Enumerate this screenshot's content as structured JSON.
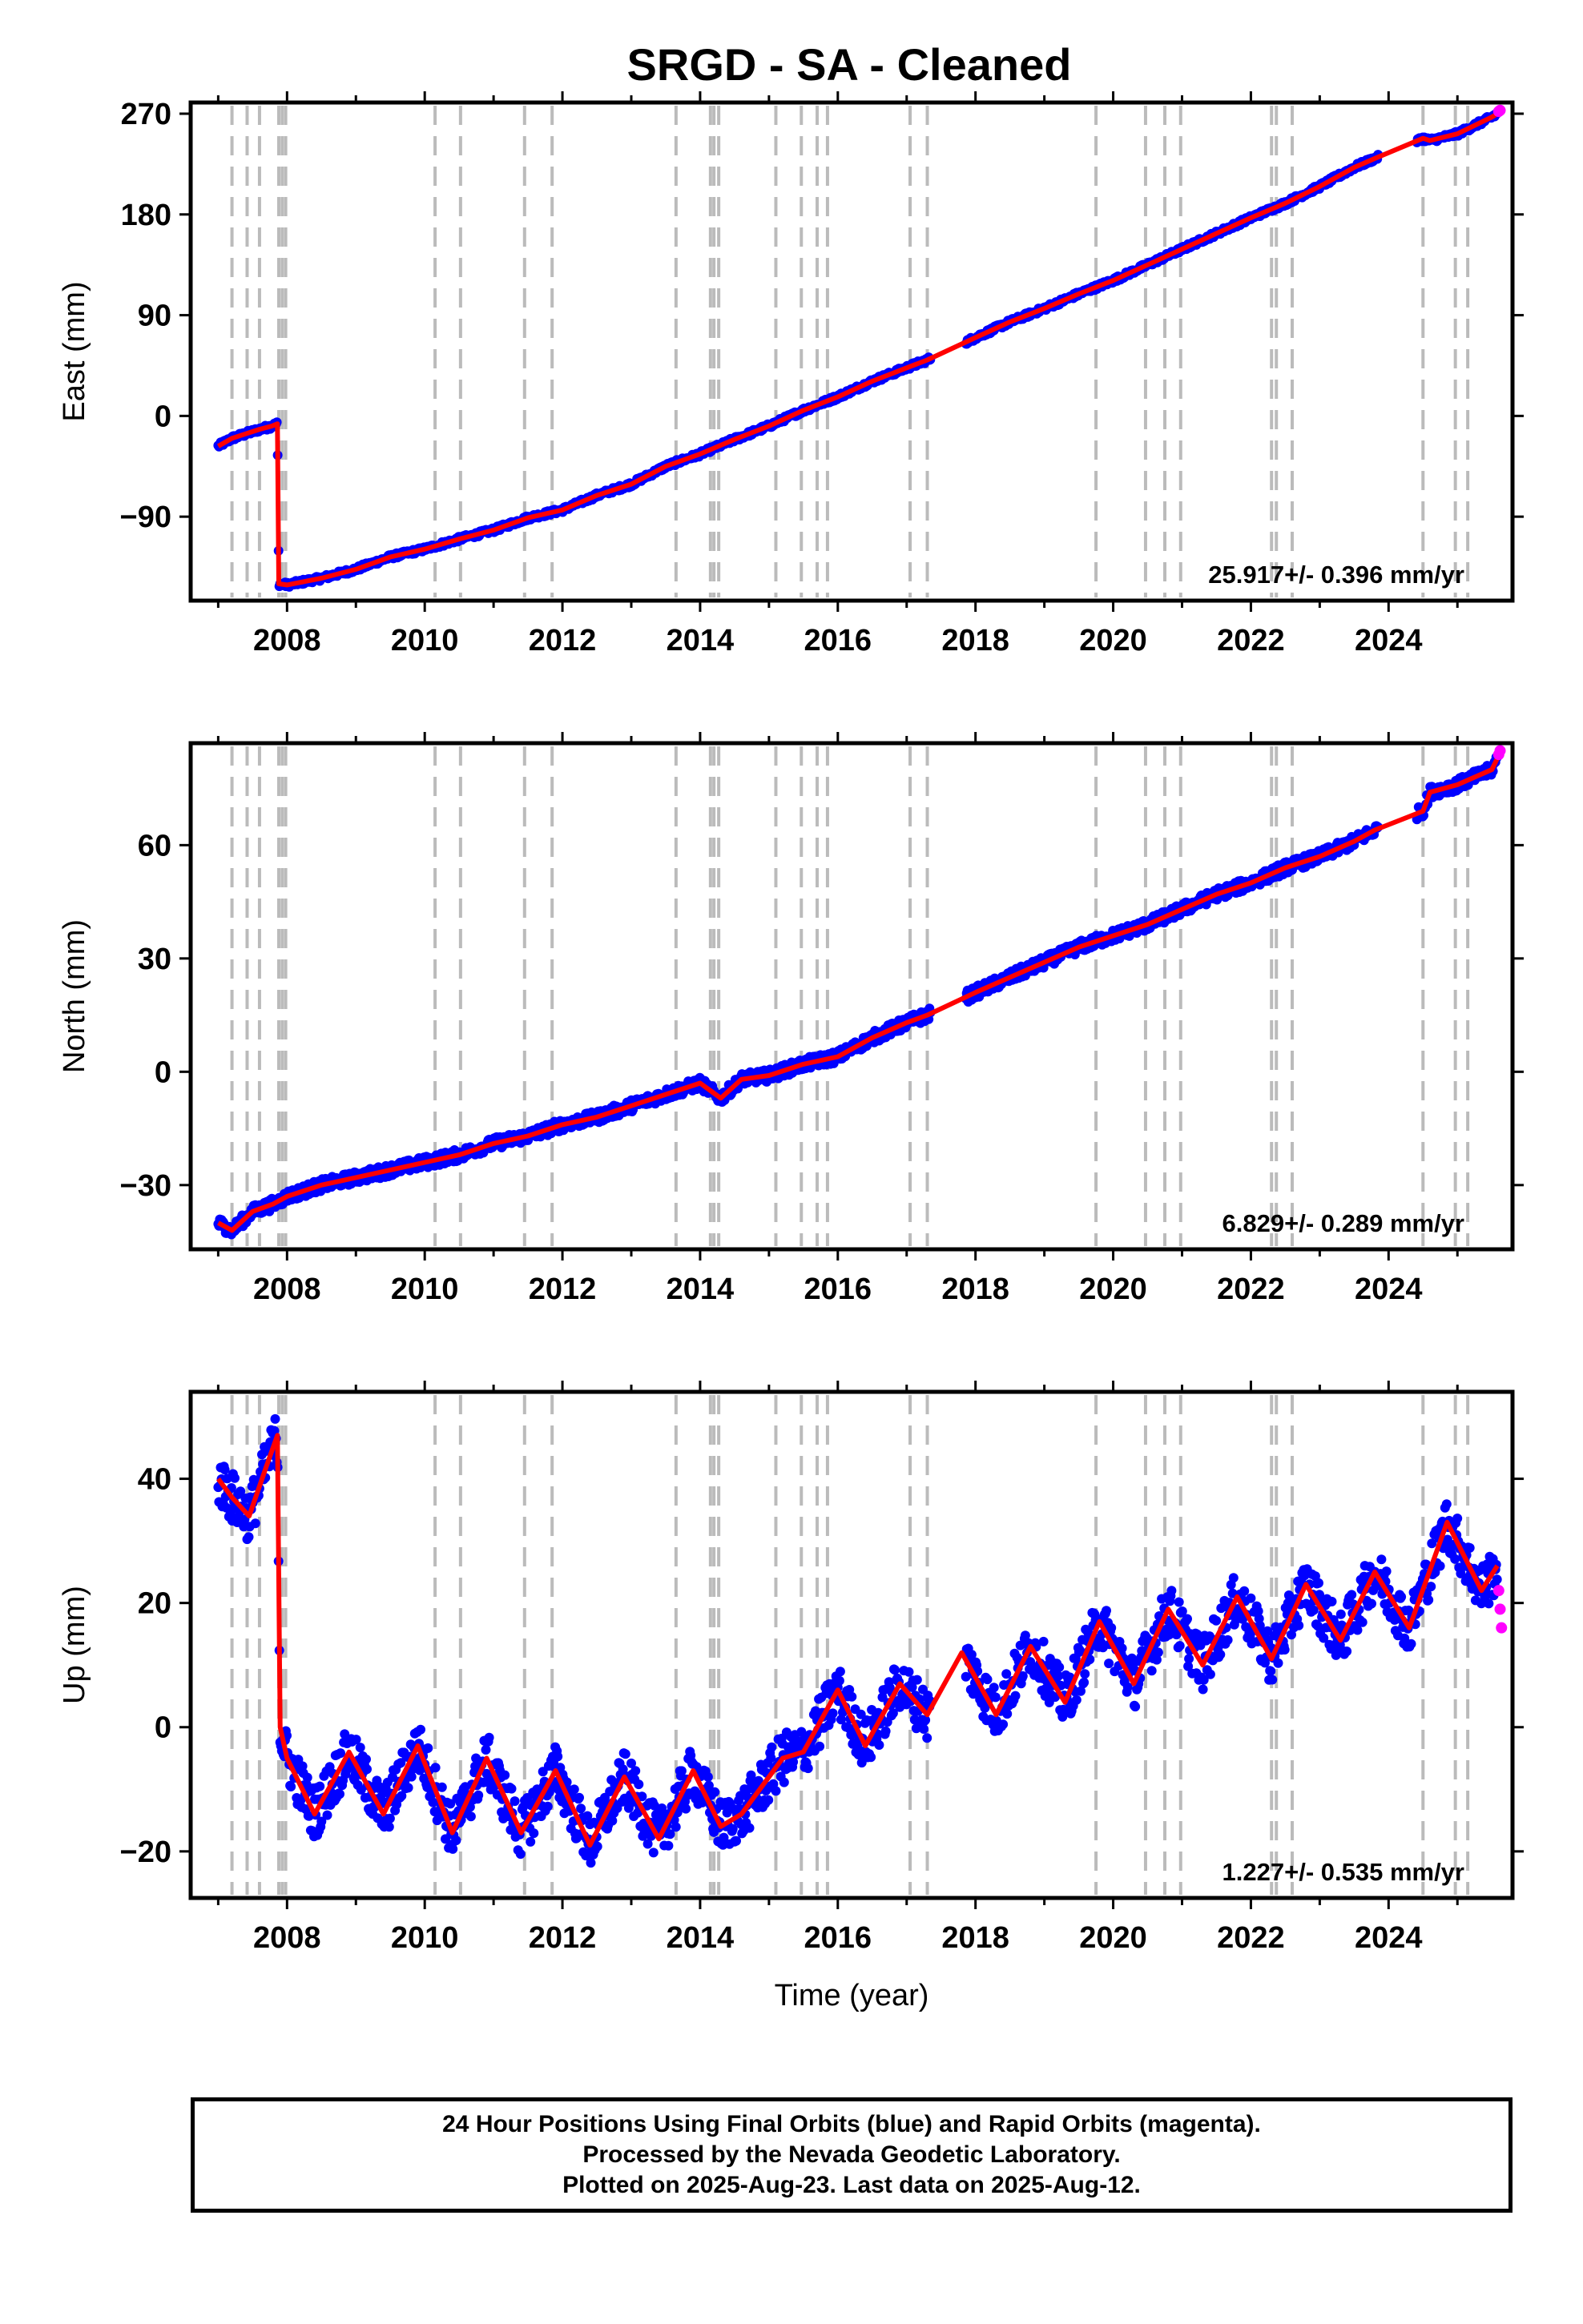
{
  "title": "SRGD  - SA - Cleaned",
  "colors": {
    "final_orbits": "#0000ff",
    "rapid_orbits": "#ff00ff",
    "model": "#ff0000",
    "event_lines": "#bbbbbb"
  },
  "event_years": [
    2007.2,
    2007.42,
    2007.6,
    2007.88,
    2007.93,
    2007.98,
    2010.15,
    2010.52,
    2011.45,
    2011.85,
    2013.65,
    2014.15,
    2014.2,
    2014.27,
    2015.1,
    2015.47,
    2015.7,
    2015.85,
    2017.05,
    2017.3,
    2019.75,
    2020.47,
    2020.75,
    2020.98,
    2022.3,
    2022.37,
    2022.6,
    2024.5,
    2024.97,
    2025.15
  ],
  "chart_data": [
    {
      "type": "scatter",
      "component": "East",
      "ylabel": "East (mm)",
      "xlim": [
        2006.6,
        2025.8
      ],
      "ylim": [
        -165,
        280
      ],
      "yticks": [
        -90,
        0,
        90,
        180,
        270
      ],
      "xticks": [
        2008,
        2010,
        2012,
        2014,
        2016,
        2018,
        2020,
        2022,
        2024
      ],
      "rate_label": "25.917+/- 0.396 mm/yr",
      "rate_mm_per_yr": 25.917,
      "series": [
        {
          "name": "Final Orbits",
          "points": [
            [
              2007.0,
              -27
            ],
            [
              2007.2,
              -20
            ],
            [
              2007.4,
              -16
            ],
            [
              2007.6,
              -12
            ],
            [
              2007.78,
              -9
            ],
            [
              2007.86,
              -7
            ],
            [
              2007.88,
              -150
            ],
            [
              2008.0,
              -151
            ],
            [
              2008.5,
              -145
            ],
            [
              2009.0,
              -137
            ],
            [
              2009.5,
              -126
            ],
            [
              2010.0,
              -119
            ],
            [
              2010.5,
              -110
            ],
            [
              2011.0,
              -102
            ],
            [
              2011.5,
              -91
            ],
            [
              2012.0,
              -84
            ],
            [
              2012.5,
              -71
            ],
            [
              2013.0,
              -61
            ],
            [
              2013.5,
              -45
            ],
            [
              2014.0,
              -34
            ],
            [
              2014.5,
              -21
            ],
            [
              2015.0,
              -9
            ],
            [
              2015.5,
              5
            ],
            [
              2016.0,
              17
            ],
            [
              2016.5,
              31
            ],
            [
              2017.0,
              43
            ],
            [
              2017.3,
              50
            ],
            [
              2018.0,
              70
            ],
            [
              2018.5,
              84
            ],
            [
              2019.0,
              96
            ],
            [
              2019.5,
              109
            ],
            [
              2020.0,
              121
            ],
            [
              2020.5,
              135
            ],
            [
              2021.0,
              149
            ],
            [
              2021.5,
              163
            ],
            [
              2022.0,
              177
            ],
            [
              2022.5,
              190
            ],
            [
              2023.0,
              205
            ],
            [
              2023.5,
              222
            ],
            [
              2023.8,
              230
            ],
            [
              2024.5,
              248
            ],
            [
              2024.6,
              246
            ],
            [
              2025.0,
              252
            ],
            [
              2025.5,
              267
            ],
            [
              2025.58,
              270
            ]
          ]
        },
        {
          "name": "Rapid Orbits",
          "points": [
            [
              2025.6,
              272
            ],
            [
              2025.62,
              273
            ]
          ]
        }
      ]
    },
    {
      "type": "scatter",
      "component": "North",
      "ylabel": "North (mm)",
      "xlim": [
        2006.6,
        2025.8
      ],
      "ylim": [
        -47,
        87
      ],
      "yticks": [
        -30,
        0,
        30,
        60
      ],
      "xticks": [
        2008,
        2010,
        2012,
        2014,
        2016,
        2018,
        2020,
        2022,
        2024
      ],
      "rate_label": "6.829+/- 0.289 mm/yr",
      "rate_mm_per_yr": 6.829,
      "series": [
        {
          "name": "Final Orbits",
          "points": [
            [
              2007.0,
              -40
            ],
            [
              2007.2,
              -42
            ],
            [
              2007.5,
              -37
            ],
            [
              2007.8,
              -35
            ],
            [
              2008.0,
              -33
            ],
            [
              2008.5,
              -30
            ],
            [
              2009.0,
              -28
            ],
            [
              2009.5,
              -26
            ],
            [
              2010.0,
              -24
            ],
            [
              2010.5,
              -22
            ],
            [
              2011.0,
              -19
            ],
            [
              2011.5,
              -17
            ],
            [
              2012.0,
              -14
            ],
            [
              2012.5,
              -12
            ],
            [
              2013.0,
              -9
            ],
            [
              2013.5,
              -6
            ],
            [
              2014.0,
              -3
            ],
            [
              2014.3,
              -7
            ],
            [
              2014.6,
              -2
            ],
            [
              2015.0,
              -1
            ],
            [
              2015.5,
              2
            ],
            [
              2016.0,
              4
            ],
            [
              2016.5,
              9
            ],
            [
              2017.0,
              13
            ],
            [
              2017.3,
              15
            ],
            [
              2018.0,
              21
            ],
            [
              2018.5,
              25
            ],
            [
              2019.0,
              29
            ],
            [
              2019.5,
              33
            ],
            [
              2020.0,
              36
            ],
            [
              2020.5,
              39
            ],
            [
              2021.0,
              43
            ],
            [
              2021.5,
              47
            ],
            [
              2022.0,
              50
            ],
            [
              2022.5,
              54
            ],
            [
              2023.0,
              57
            ],
            [
              2023.5,
              61
            ],
            [
              2023.8,
              64
            ],
            [
              2024.5,
              69
            ],
            [
              2024.6,
              74
            ],
            [
              2025.0,
              76
            ],
            [
              2025.5,
              80
            ],
            [
              2025.58,
              83
            ]
          ]
        },
        {
          "name": "Rapid Orbits",
          "points": [
            [
              2025.6,
              84
            ],
            [
              2025.62,
              85
            ]
          ]
        }
      ]
    },
    {
      "type": "scatter",
      "component": "Up",
      "ylabel": "Up (mm)",
      "xlim": [
        2006.6,
        2025.8
      ],
      "ylim": [
        -27.5,
        54
      ],
      "yticks": [
        -20,
        0,
        20,
        40
      ],
      "xticks": [
        2008,
        2010,
        2012,
        2014,
        2016,
        2018,
        2020,
        2022,
        2024
      ],
      "xlabel": "Time (year)",
      "rate_label": "1.227+/- 0.535 mm/yr",
      "rate_mm_per_yr": 1.227,
      "series": [
        {
          "name": "Final Orbits",
          "points": [
            [
              2007.0,
              40
            ],
            [
              2007.2,
              37
            ],
            [
              2007.45,
              34
            ],
            [
              2007.7,
              42
            ],
            [
              2007.86,
              47
            ],
            [
              2007.9,
              0
            ],
            [
              2008.0,
              -5
            ],
            [
              2008.4,
              -14
            ],
            [
              2008.9,
              -4
            ],
            [
              2009.4,
              -14
            ],
            [
              2009.9,
              -3
            ],
            [
              2010.4,
              -17
            ],
            [
              2010.9,
              -5
            ],
            [
              2011.4,
              -17
            ],
            [
              2011.9,
              -7
            ],
            [
              2012.4,
              -19
            ],
            [
              2012.9,
              -8
            ],
            [
              2013.4,
              -18
            ],
            [
              2013.9,
              -7
            ],
            [
              2014.3,
              -16
            ],
            [
              2014.6,
              -14
            ],
            [
              2015.0,
              -8
            ],
            [
              2015.2,
              -5
            ],
            [
              2015.5,
              -4
            ],
            [
              2016.0,
              6
            ],
            [
              2016.4,
              -3
            ],
            [
              2016.9,
              7
            ],
            [
              2017.3,
              2
            ],
            [
              2017.8,
              12
            ],
            [
              2018.3,
              2
            ],
            [
              2018.8,
              13
            ],
            [
              2019.3,
              4
            ],
            [
              2019.8,
              17
            ],
            [
              2020.3,
              7
            ],
            [
              2020.8,
              19
            ],
            [
              2021.3,
              10
            ],
            [
              2021.8,
              21
            ],
            [
              2022.3,
              11
            ],
            [
              2022.8,
              23
            ],
            [
              2023.3,
              14
            ],
            [
              2023.8,
              25
            ],
            [
              2024.3,
              16
            ],
            [
              2024.85,
              33
            ],
            [
              2025.35,
              22
            ],
            [
              2025.58,
              26
            ]
          ]
        },
        {
          "name": "Rapid Orbits",
          "points": [
            [
              2025.6,
              22
            ],
            [
              2025.62,
              19
            ],
            [
              2025.64,
              16
            ]
          ]
        }
      ]
    }
  ],
  "footer": {
    "line1": "24 Hour Positions Using Final Orbits (blue) and Rapid Orbits (magenta).",
    "line2": "Processed by the Nevada Geodetic Laboratory.",
    "line3": "Plotted on 2025-Aug-23. Last data on 2025-Aug-12."
  }
}
